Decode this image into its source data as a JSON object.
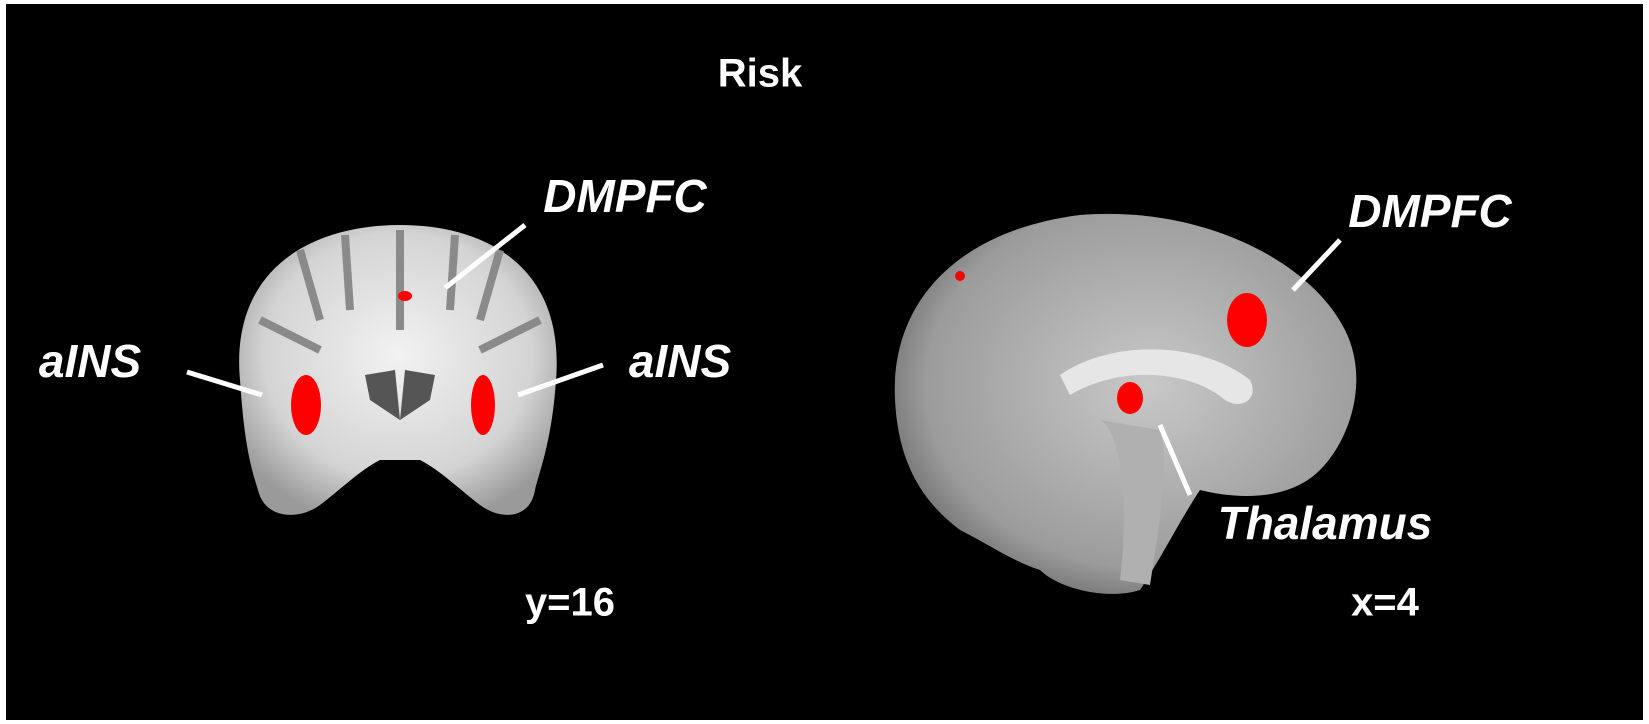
{
  "title": "Risk",
  "coronal": {
    "labels": [
      "DMPFC",
      "aINS",
      "aINS"
    ],
    "slice": "y=16"
  },
  "sagittal": {
    "labels": [
      "DMPFC",
      "Thalamus"
    ],
    "slice": "x=4"
  }
}
